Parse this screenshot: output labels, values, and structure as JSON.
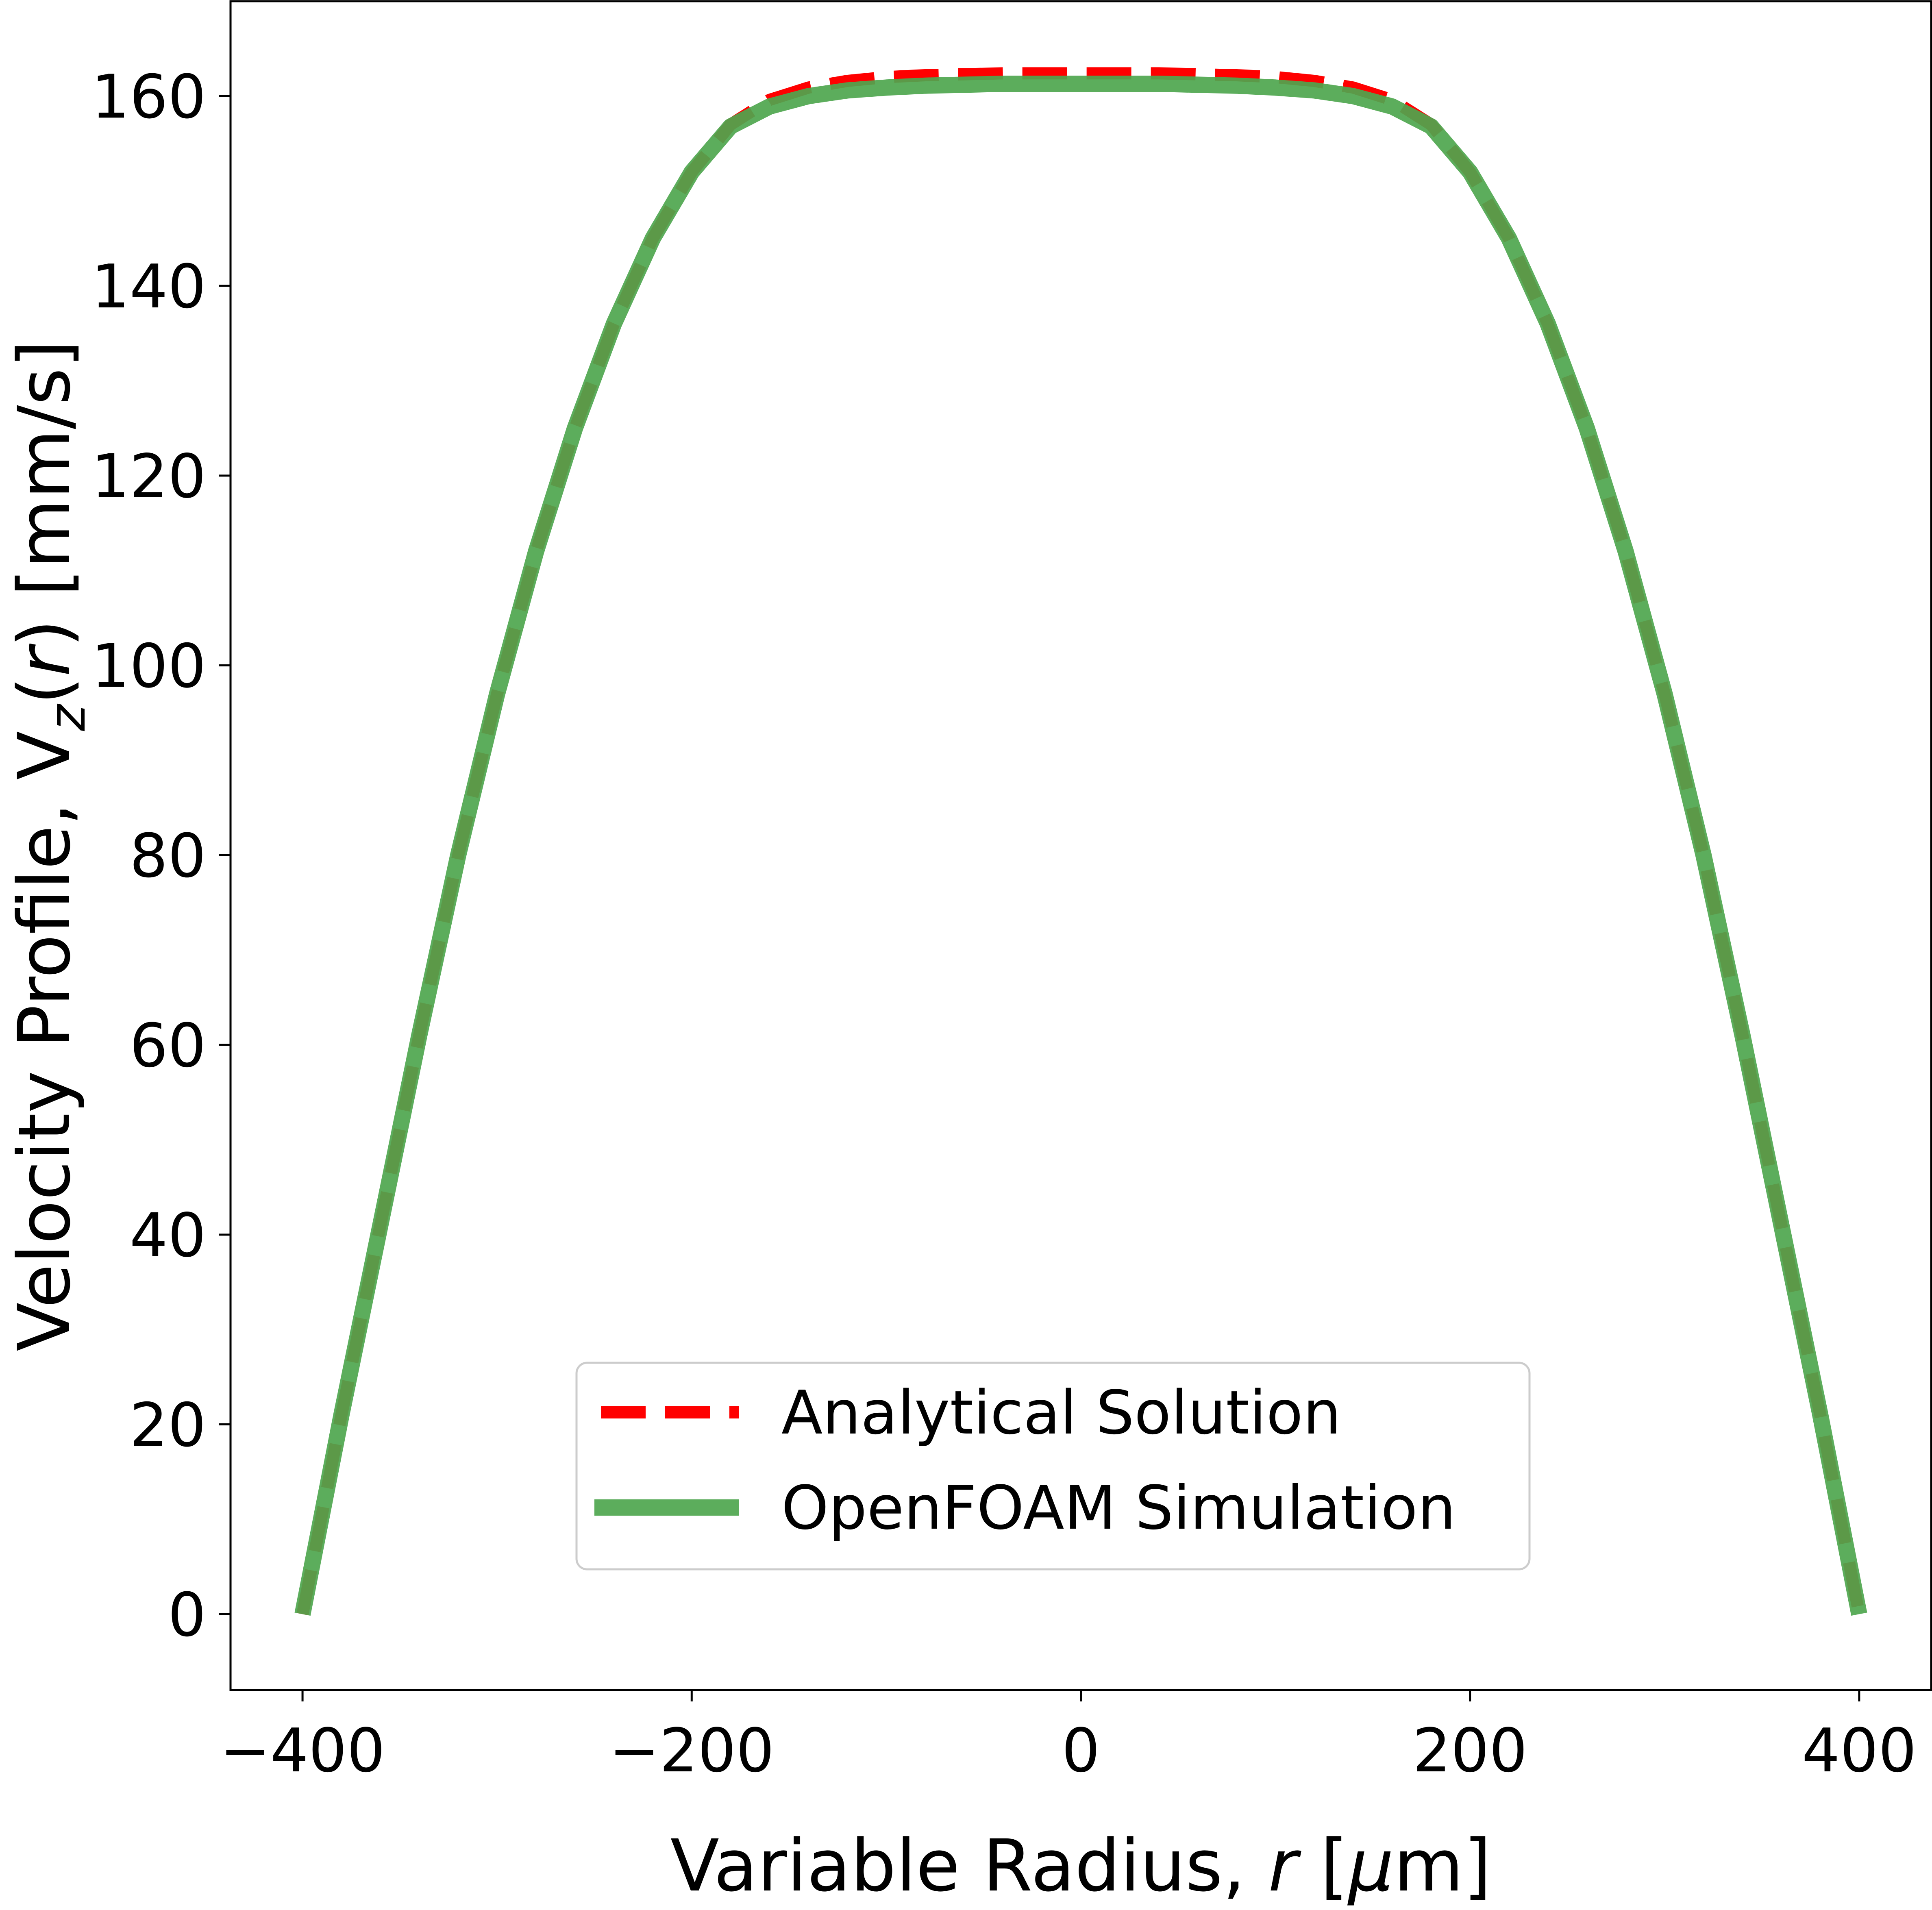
{
  "chart_data": {
    "type": "line",
    "title": "",
    "xlabel_parts": [
      "Variable Radius, ",
      "r",
      " [",
      "μ",
      "m]"
    ],
    "ylabel_parts": [
      "Velocity Profile, V",
      "z",
      "(",
      "r",
      ") [mm/s]"
    ],
    "xlim": [
      -437,
      437
    ],
    "ylim": [
      -8,
      170
    ],
    "xticks": [
      -400,
      -200,
      0,
      200,
      400
    ],
    "xtick_labels": [
      "−400",
      "−200",
      "0",
      "200",
      "400"
    ],
    "yticks": [
      0,
      20,
      40,
      60,
      80,
      100,
      120,
      140,
      160
    ],
    "ytick_labels": [
      "0",
      "20",
      "40",
      "60",
      "80",
      "100",
      "120",
      "140",
      "160"
    ],
    "grid": false,
    "legend_position": "lower-center",
    "series": [
      {
        "name": "Analytical Solution",
        "style": "dashed",
        "color": "#ff0000",
        "x": [
          -400,
          -380,
          -360,
          -340,
          -320,
          -300,
          -280,
          -260,
          -240,
          -220,
          -200,
          -180,
          -160,
          -140,
          -120,
          -100,
          -80,
          -60,
          -40,
          -20,
          0,
          20,
          40,
          60,
          80,
          100,
          120,
          140,
          160,
          180,
          200,
          220,
          240,
          260,
          280,
          300,
          320,
          340,
          360,
          380,
          400
        ],
        "y": [
          0,
          21,
          41,
          61,
          80,
          97,
          112,
          125,
          136,
          145,
          152,
          157,
          159.6,
          160.9,
          161.6,
          162,
          162.2,
          162.3,
          162.4,
          162.4,
          162.4,
          162.4,
          162.4,
          162.3,
          162.2,
          162,
          161.6,
          160.9,
          159.6,
          157,
          152,
          145,
          136,
          125,
          112,
          97,
          80,
          61,
          41,
          21,
          0
        ]
      },
      {
        "name": "OpenFOAM Simulation",
        "style": "solid",
        "color": "#4ea64e",
        "x": [
          -400,
          -380,
          -360,
          -340,
          -320,
          -300,
          -280,
          -260,
          -240,
          -220,
          -200,
          -180,
          -160,
          -140,
          -120,
          -100,
          -80,
          -60,
          -40,
          -20,
          0,
          20,
          40,
          60,
          80,
          100,
          120,
          140,
          160,
          180,
          200,
          220,
          240,
          260,
          280,
          300,
          320,
          340,
          360,
          380,
          400
        ],
        "y": [
          0,
          21,
          41,
          61,
          80,
          97,
          112,
          125,
          136,
          145,
          152,
          156.8,
          158.9,
          160,
          160.6,
          160.9,
          161.1,
          161.2,
          161.3,
          161.3,
          161.3,
          161.3,
          161.3,
          161.2,
          161.1,
          160.9,
          160.6,
          160,
          158.9,
          156.8,
          152,
          145,
          136,
          125,
          112,
          97,
          80,
          61,
          41,
          21,
          0
        ]
      }
    ]
  }
}
